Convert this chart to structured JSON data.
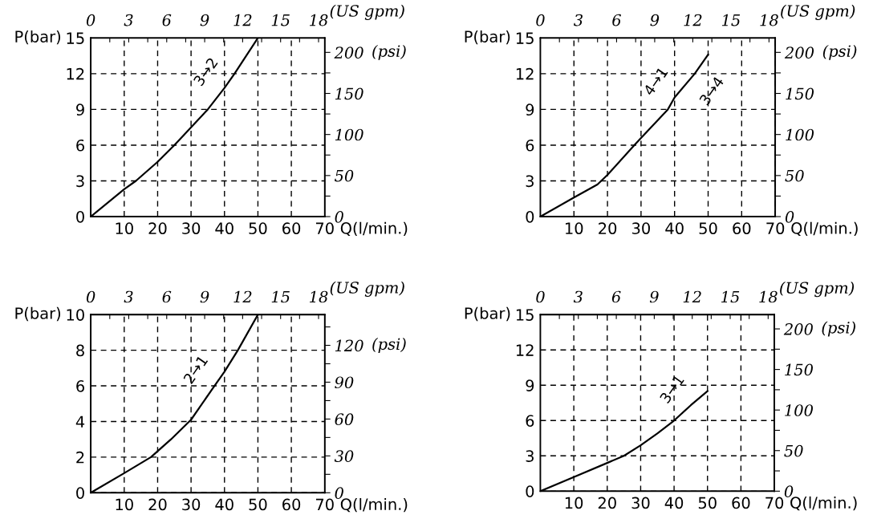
{
  "chart_data": [
    {
      "type": "line",
      "xlabel": "Q(l/min.)",
      "ylabel": "P(bar)",
      "y2label": "(psi)",
      "x2label": "(US gpm)",
      "x": [
        0,
        10,
        13.5,
        20,
        25,
        30,
        35,
        40,
        43,
        50
      ],
      "series": [
        {
          "color": "#000000",
          "values": [
            0,
            2.3,
            3,
            4.6,
            6,
            7.5,
            9,
            10.8,
            12,
            15
          ]
        }
      ],
      "xlim": [
        0,
        70
      ],
      "xticks": [
        10,
        20,
        30,
        40,
        50,
        60,
        70
      ],
      "ylim": [
        0,
        15
      ],
      "yticks": [
        0,
        3,
        6,
        9,
        12,
        15
      ],
      "y2lim": [
        0,
        217.6
      ],
      "y2ticks": [
        0,
        {
          "value": 25,
          "label": null
        },
        50,
        {
          "value": 75,
          "label": null
        },
        100,
        {
          "value": 125,
          "label": null
        },
        150,
        {
          "value": 175,
          "label": null
        },
        200
      ],
      "x2lim": [
        0,
        18.49
      ],
      "x2ticks": [
        0,
        {
          "value": 1.5,
          "label": null
        },
        3,
        {
          "value": 4.5,
          "label": null
        },
        6,
        {
          "value": 7.5,
          "label": null
        },
        9,
        {
          "value": 10.5,
          "label": null
        },
        12,
        {
          "value": 13.5,
          "label": null
        },
        15,
        {
          "value": 16.5,
          "label": null
        },
        18
      ],
      "annotations": [
        {
          "text": "3→2",
          "x": 40,
          "y": 10.8
        }
      ],
      "grid": true,
      "line_style": "solid",
      "marker": "none"
    },
    {
      "type": "line",
      "xlabel": "Q(l/min.)",
      "ylabel": "P(bar)",
      "y2label": "(psi)",
      "x2label": "(US gpm)",
      "x": [
        0,
        10,
        17,
        20,
        28,
        30,
        38,
        40,
        46,
        50
      ],
      "series": [
        {
          "color": "#000000",
          "values": [
            0,
            1.6,
            2.7,
            3.5,
            6,
            6.6,
            9,
            10,
            12,
            13.6
          ]
        }
      ],
      "xlim": [
        0,
        70
      ],
      "xticks": [
        10,
        20,
        30,
        40,
        50,
        60,
        70
      ],
      "ylim": [
        0,
        15
      ],
      "yticks": [
        0,
        3,
        6,
        9,
        12,
        15
      ],
      "y2lim": [
        0,
        217.6
      ],
      "y2ticks": [
        0,
        {
          "value": 25,
          "label": null
        },
        50,
        {
          "value": 75,
          "label": null
        },
        100,
        {
          "value": 125,
          "label": null
        },
        150,
        {
          "value": 175,
          "label": null
        },
        200
      ],
      "x2lim": [
        0,
        18.49
      ],
      "x2ticks": [
        0,
        {
          "value": 1.5,
          "label": null
        },
        3,
        {
          "value": 4.5,
          "label": null
        },
        6,
        {
          "value": 7.5,
          "label": null
        },
        9,
        {
          "value": 10.5,
          "label": null
        },
        12,
        {
          "value": 13.5,
          "label": null
        },
        15,
        {
          "value": 16.5,
          "label": null
        },
        18
      ],
      "annotations": [
        {
          "text": "4→1",
          "x": 40,
          "y": 10
        },
        {
          "text": "3→4",
          "x": 46,
          "y": 12
        }
      ],
      "grid": true,
      "line_style": "solid",
      "marker": "none"
    },
    {
      "type": "line",
      "xlabel": "Q(l/min.)",
      "ylabel": "P(bar)",
      "y2label": "(psi)",
      "x2label": "(US gpm)",
      "x": [
        0,
        10,
        18,
        24,
        30,
        37,
        40,
        44,
        50
      ],
      "series": [
        {
          "color": "#000000",
          "values": [
            0,
            1.1,
            2,
            3,
            4.1,
            6,
            6.8,
            8,
            10
          ]
        }
      ],
      "xlim": [
        0,
        70
      ],
      "xticks": [
        10,
        20,
        30,
        40,
        50,
        60,
        70
      ],
      "ylim": [
        0,
        10
      ],
      "yticks": [
        0,
        2,
        4,
        6,
        8,
        10
      ],
      "y2lim": [
        0,
        145
      ],
      "y2ticks": [
        0,
        {
          "value": 15,
          "label": null
        },
        30,
        {
          "value": 45,
          "label": null
        },
        60,
        {
          "value": 75,
          "label": null
        },
        90,
        {
          "value": 105,
          "label": null
        },
        120,
        {
          "value": 135,
          "label": null
        }
      ],
      "x2lim": [
        0,
        18.49
      ],
      "x2ticks": [
        0,
        {
          "value": 1.5,
          "label": null
        },
        3,
        {
          "value": 4.5,
          "label": null
        },
        6,
        {
          "value": 7.5,
          "label": null
        },
        9,
        {
          "value": 10.5,
          "label": null
        },
        12,
        {
          "value": 13.5,
          "label": null
        },
        15,
        {
          "value": 16.5,
          "label": null
        },
        18
      ],
      "annotations": [
        {
          "text": "2→1",
          "x": 37,
          "y": 6
        }
      ],
      "grid": true,
      "line_style": "solid",
      "marker": "none"
    },
    {
      "type": "line",
      "xlabel": "Q(l/min.)",
      "ylabel": "P(bar)",
      "y2label": "(psi)",
      "x2label": "(US gpm)",
      "x": [
        0,
        10,
        20,
        25,
        30,
        35,
        40,
        45,
        50
      ],
      "series": [
        {
          "color": "#000000",
          "values": [
            0,
            1.2,
            2.4,
            3,
            3.9,
            4.9,
            6,
            7.3,
            8.5
          ]
        }
      ],
      "xlim": [
        0,
        70
      ],
      "xticks": [
        10,
        20,
        30,
        40,
        50,
        60,
        70
      ],
      "ylim": [
        0,
        15
      ],
      "yticks": [
        0,
        3,
        6,
        9,
        12,
        15
      ],
      "y2lim": [
        0,
        217.6
      ],
      "y2ticks": [
        0,
        {
          "value": 25,
          "label": null
        },
        50,
        {
          "value": 75,
          "label": null
        },
        100,
        {
          "value": 125,
          "label": null
        },
        150,
        {
          "value": 175,
          "label": null
        },
        200
      ],
      "x2lim": [
        0,
        18.49
      ],
      "x2ticks": [
        0,
        {
          "value": 1.5,
          "label": null
        },
        3,
        {
          "value": 4.5,
          "label": null
        },
        6,
        {
          "value": 7.5,
          "label": null
        },
        9,
        {
          "value": 10.5,
          "label": null
        },
        12,
        {
          "value": 13.5,
          "label": null
        },
        15,
        {
          "value": 16.5,
          "label": null
        },
        18
      ],
      "annotations": [
        {
          "text": "3→1",
          "x": 45,
          "y": 7.3
        }
      ],
      "grid": true,
      "line_style": "solid",
      "marker": "none"
    }
  ]
}
